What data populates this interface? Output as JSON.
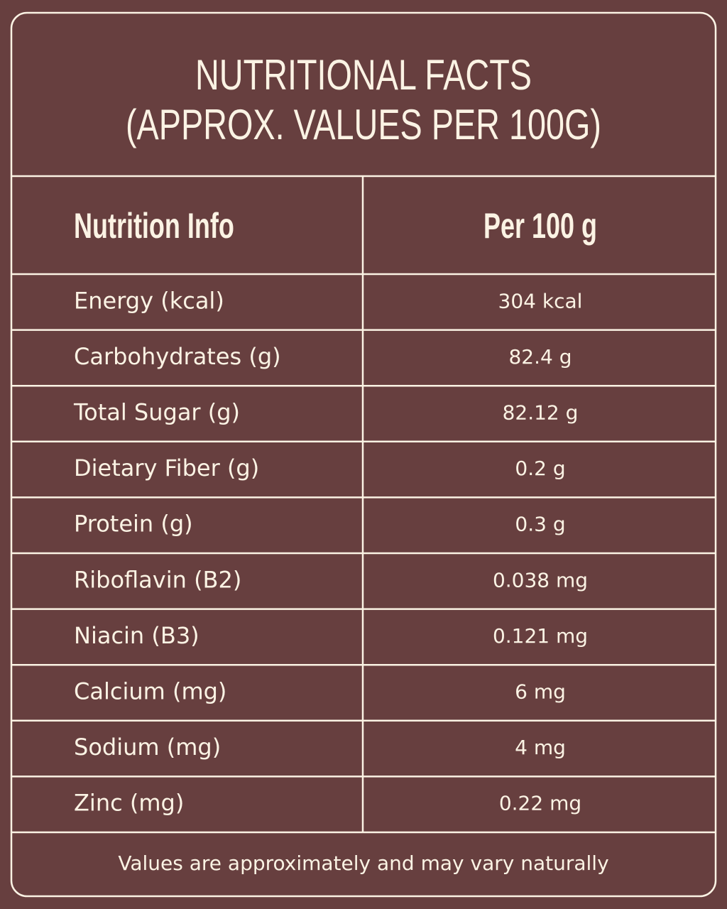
{
  "title": [
    "NUTRITIONAL FACTS",
    "(APPROX. VALUES PER 100G)"
  ],
  "table": {
    "header": [
      "Nutrition Info",
      "Per 100 g"
    ],
    "rows": [
      [
        "Energy (kcal)",
        "304 kcal"
      ],
      [
        "Carbohydrates (g)",
        "82.4 g"
      ],
      [
        "Total Sugar (g)",
        "82.12 g"
      ],
      [
        "Dietary Fiber (g)",
        "0.2 g"
      ],
      [
        "Protein (g)",
        "0.3 g"
      ],
      [
        "Riboflavin (B2)",
        "0.038 mg"
      ],
      [
        "Niacin (B3)",
        "0.121 mg"
      ],
      [
        "Calcium (mg)",
        "6 mg"
      ],
      [
        "Sodium (mg)",
        "4 mg"
      ],
      [
        "Zinc (mg)",
        "0.22 mg"
      ]
    ]
  },
  "note": "Values are approximately and may vary naturally"
}
